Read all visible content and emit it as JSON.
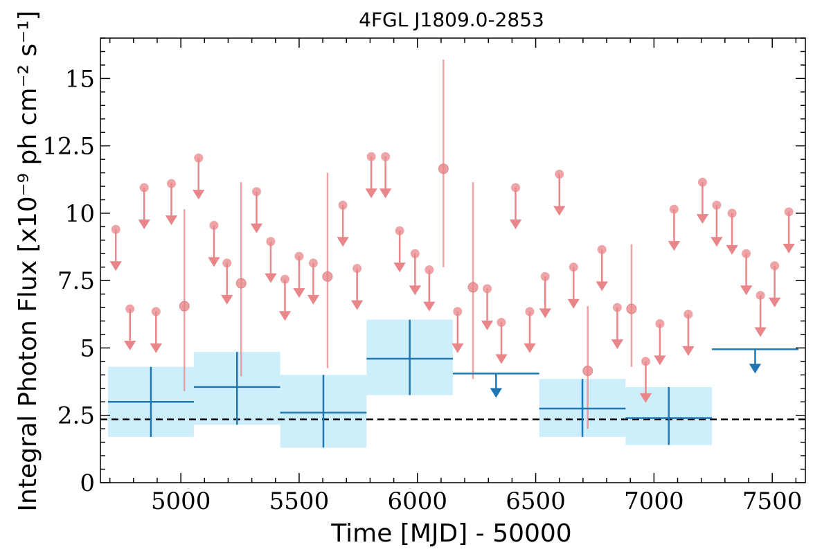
{
  "chart_data": {
    "type": "scatter",
    "title": "4FGL J1809.0-2853",
    "xlabel": "Time [MJD] - 50000",
    "ylabel": "Integral Photon Flux [x10⁻⁹ ph cm⁻² s⁻¹]",
    "xlim": [
      4660,
      7640
    ],
    "ylim": [
      0,
      16.5
    ],
    "xticks": [
      5000,
      5500,
      6000,
      6500,
      7000,
      7500
    ],
    "xtick_labels": [
      "5000",
      "5500",
      "6000",
      "6500",
      "7000",
      "7500"
    ],
    "yticks": [
      0,
      2.5,
      5,
      7.5,
      10,
      12.5,
      15
    ],
    "ytick_labels": [
      "0",
      "2.5",
      "5",
      "7.5",
      "10",
      "12.5",
      "15"
    ],
    "reference_line": {
      "y": 2.35,
      "style": "dashed",
      "color": "#000000"
    },
    "colors": {
      "fine": "#e8868a",
      "coarse": "#1f77b4",
      "coarse_band": "#cdeefb"
    },
    "series": [
      {
        "bin_width_days": 60,
        "detections": [
          {
            "x": 5015,
            "y": 6.55,
            "ylo": 3.4,
            "yhi": 10.15
          },
          {
            "x": 5255,
            "y": 7.4,
            "ylo": 3.95,
            "yhi": 11.15
          },
          {
            "x": 5620,
            "y": 7.65,
            "ylo": 4.25,
            "yhi": 11.5
          },
          {
            "x": 6110,
            "y": 11.65,
            "ylo": 8.0,
            "yhi": 15.7
          },
          {
            "x": 6235,
            "y": 7.25,
            "ylo": 3.85,
            "yhi": 11.15
          },
          {
            "x": 6720,
            "y": 4.15,
            "ylo": 2.0,
            "yhi": 6.55
          },
          {
            "x": 6905,
            "y": 6.45,
            "ylo": 4.3,
            "yhi": 8.85
          }
        ],
        "upper_limits": [
          {
            "x": 4725,
            "y": 9.4
          },
          {
            "x": 4785,
            "y": 6.45
          },
          {
            "x": 4845,
            "y": 10.95
          },
          {
            "x": 4895,
            "y": 6.35
          },
          {
            "x": 4960,
            "y": 11.1
          },
          {
            "x": 5075,
            "y": 12.05
          },
          {
            "x": 5140,
            "y": 9.55
          },
          {
            "x": 5195,
            "y": 8.15
          },
          {
            "x": 5320,
            "y": 10.8
          },
          {
            "x": 5380,
            "y": 8.95
          },
          {
            "x": 5440,
            "y": 7.55
          },
          {
            "x": 5500,
            "y": 8.4
          },
          {
            "x": 5560,
            "y": 8.15
          },
          {
            "x": 5685,
            "y": 10.3
          },
          {
            "x": 5745,
            "y": 7.95
          },
          {
            "x": 5805,
            "y": 12.1
          },
          {
            "x": 5865,
            "y": 12.1
          },
          {
            "x": 5925,
            "y": 9.35
          },
          {
            "x": 5990,
            "y": 8.5
          },
          {
            "x": 6050,
            "y": 7.9
          },
          {
            "x": 6170,
            "y": 6.35
          },
          {
            "x": 6295,
            "y": 7.2
          },
          {
            "x": 6355,
            "y": 5.95
          },
          {
            "x": 6415,
            "y": 10.95
          },
          {
            "x": 6475,
            "y": 6.35
          },
          {
            "x": 6540,
            "y": 7.65
          },
          {
            "x": 6600,
            "y": 11.45
          },
          {
            "x": 6660,
            "y": 8.0
          },
          {
            "x": 6780,
            "y": 8.65
          },
          {
            "x": 6845,
            "y": 6.5
          },
          {
            "x": 6965,
            "y": 4.5
          },
          {
            "x": 7025,
            "y": 5.9
          },
          {
            "x": 7085,
            "y": 10.15
          },
          {
            "x": 7145,
            "y": 6.25
          },
          {
            "x": 7205,
            "y": 11.15
          },
          {
            "x": 7265,
            "y": 10.3
          },
          {
            "x": 7330,
            "y": 10.0
          },
          {
            "x": 7390,
            "y": 8.5
          },
          {
            "x": 7450,
            "y": 6.95
          },
          {
            "x": 7510,
            "y": 8.05
          },
          {
            "x": 7570,
            "y": 10.05
          }
        ]
      },
      {
        "bin_width_days": 365,
        "detections": [
          {
            "x0": 4692,
            "x1": 5055,
            "y": 3.0,
            "ylo": 1.7,
            "yhi": 4.3
          },
          {
            "x0": 5055,
            "x1": 5420,
            "y": 3.55,
            "ylo": 2.15,
            "yhi": 4.85
          },
          {
            "x0": 5420,
            "x1": 5785,
            "y": 2.6,
            "ylo": 1.3,
            "yhi": 4.0
          },
          {
            "x0": 5785,
            "x1": 6150,
            "y": 4.6,
            "ylo": 3.25,
            "yhi": 6.05
          },
          {
            "x0": 6515,
            "x1": 6880,
            "y": 2.75,
            "ylo": 1.7,
            "yhi": 3.85
          },
          {
            "x0": 6880,
            "x1": 7245,
            "y": 2.4,
            "ylo": 1.4,
            "yhi": 3.55
          }
        ],
        "upper_limits": [
          {
            "x0": 6150,
            "x1": 6515,
            "y": 4.05
          },
          {
            "x0": 7245,
            "x1": 7610,
            "y": 4.95
          }
        ]
      }
    ]
  }
}
